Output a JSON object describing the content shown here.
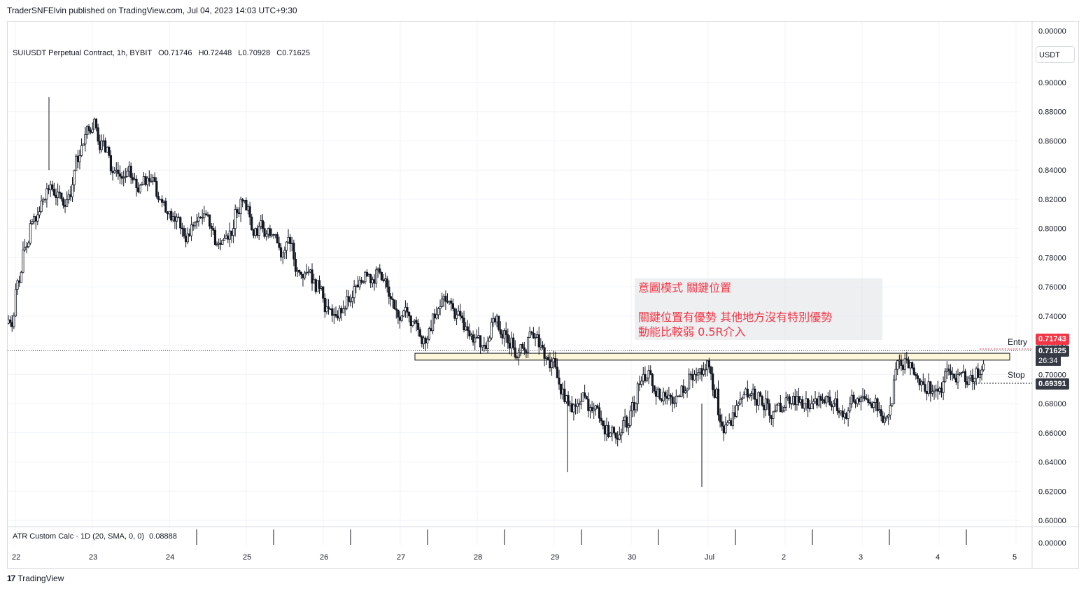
{
  "header": {
    "published": "TraderSNFElvin published on TradingView.com, Jul 04, 2023 14:03 UTC+9:30"
  },
  "legend": {
    "symbol": "SUIUSDT Perpetual Contract, 1h, BYBIT",
    "open": "O0.71746",
    "high": "H0.72448",
    "low": "L0.70928",
    "close": "C0.71625"
  },
  "currency": "USDT",
  "indicator": {
    "name": "ATR Custom Calc · 1D (20, SMA, 0, 0)",
    "value": "0.08888",
    "axis_label": "0.00000"
  },
  "note": {
    "line1": "意圖模式 關鍵位置",
    "line2": "",
    "line3": "關鍵位置有優勢 其他地方沒有特別優勢",
    "line4": "動能比較弱 0.5R介入"
  },
  "levels": {
    "entry_text": "Entry",
    "entry_price": "0.71743",
    "last_price": "0.71625",
    "countdown": "26:34",
    "stop_text": "Stop",
    "stop_price": "0.69391"
  },
  "footer": {
    "brand": "TradingView",
    "mark": "17"
  },
  "colors": {
    "up": "#131722",
    "down": "#131722",
    "entry": "#f23645",
    "last": "#363a45",
    "zone_fill": "#fdf6d8",
    "zone_border": "#131722",
    "note_text": "#f23645"
  },
  "chart_data": {
    "type": "candlestick",
    "title": "SUIUSDT Perpetual Contract, 1h, BYBIT",
    "x_axis": {
      "labels": [
        "22",
        "23",
        "24",
        "25",
        "26",
        "27",
        "28",
        "29",
        "30",
        "Jul",
        "2",
        "3",
        "4",
        "5"
      ]
    },
    "y_axis": {
      "range": [
        0.59,
        0.92
      ],
      "ticks": [
        "0.90000",
        "0.88000",
        "0.86000",
        "0.84000",
        "0.82000",
        "0.80000",
        "0.78000",
        "0.76000",
        "0.74000",
        "0.72000",
        "0.70000",
        "0.68000",
        "0.66000",
        "0.64000",
        "0.62000",
        "0.60000"
      ]
    },
    "hourly_close": [
      0.74,
      0.77,
      0.79,
      0.805,
      0.82,
      0.83,
      0.825,
      0.815,
      0.83,
      0.85,
      0.87,
      0.875,
      0.86,
      0.85,
      0.84,
      0.835,
      0.835,
      0.825,
      0.83,
      0.835,
      0.82,
      0.81,
      0.805,
      0.8,
      0.795,
      0.805,
      0.81,
      0.8,
      0.79,
      0.795,
      0.8,
      0.82,
      0.815,
      0.8,
      0.8,
      0.795,
      0.79,
      0.785,
      0.79,
      0.77,
      0.77,
      0.765,
      0.76,
      0.745,
      0.74,
      0.745,
      0.75,
      0.76,
      0.77,
      0.765,
      0.77,
      0.76,
      0.745,
      0.74,
      0.74,
      0.735,
      0.725,
      0.73,
      0.745,
      0.75,
      0.745,
      0.74,
      0.73,
      0.725,
      0.72,
      0.725,
      0.74,
      0.73,
      0.725,
      0.715,
      0.715,
      0.725,
      0.72,
      0.71,
      0.705,
      0.69,
      0.68,
      0.68,
      0.685,
      0.675,
      0.67,
      0.665,
      0.66,
      0.66,
      0.665,
      0.68,
      0.7,
      0.7,
      0.69,
      0.685,
      0.68,
      0.685,
      0.69,
      0.7,
      0.7,
      0.705,
      0.69,
      0.66,
      0.665,
      0.68,
      0.69,
      0.69,
      0.685,
      0.68,
      0.675,
      0.675,
      0.68,
      0.685,
      0.68,
      0.68,
      0.685,
      0.685,
      0.68,
      0.675,
      0.675,
      0.68,
      0.685,
      0.68,
      0.675,
      0.67,
      0.68,
      0.71,
      0.71,
      0.7,
      0.695,
      0.695,
      0.69,
      0.695,
      0.7,
      0.7,
      0.695,
      0.695,
      0.7,
      0.717
    ],
    "ohlc_last": {
      "open": 0.71746,
      "high": 0.72448,
      "low": 0.70928,
      "close": 0.71625
    },
    "lows": [
      {
        "label": "29",
        "value": 0.633
      },
      {
        "label": "Jul",
        "value": 0.623
      }
    ],
    "highs": [
      {
        "label": "22",
        "value": 0.89
      }
    ],
    "zone": {
      "top": 0.7145,
      "bottom": 0.7098
    },
    "entry": 0.71743,
    "stop": 0.69391,
    "atr_value": 0.08888
  }
}
